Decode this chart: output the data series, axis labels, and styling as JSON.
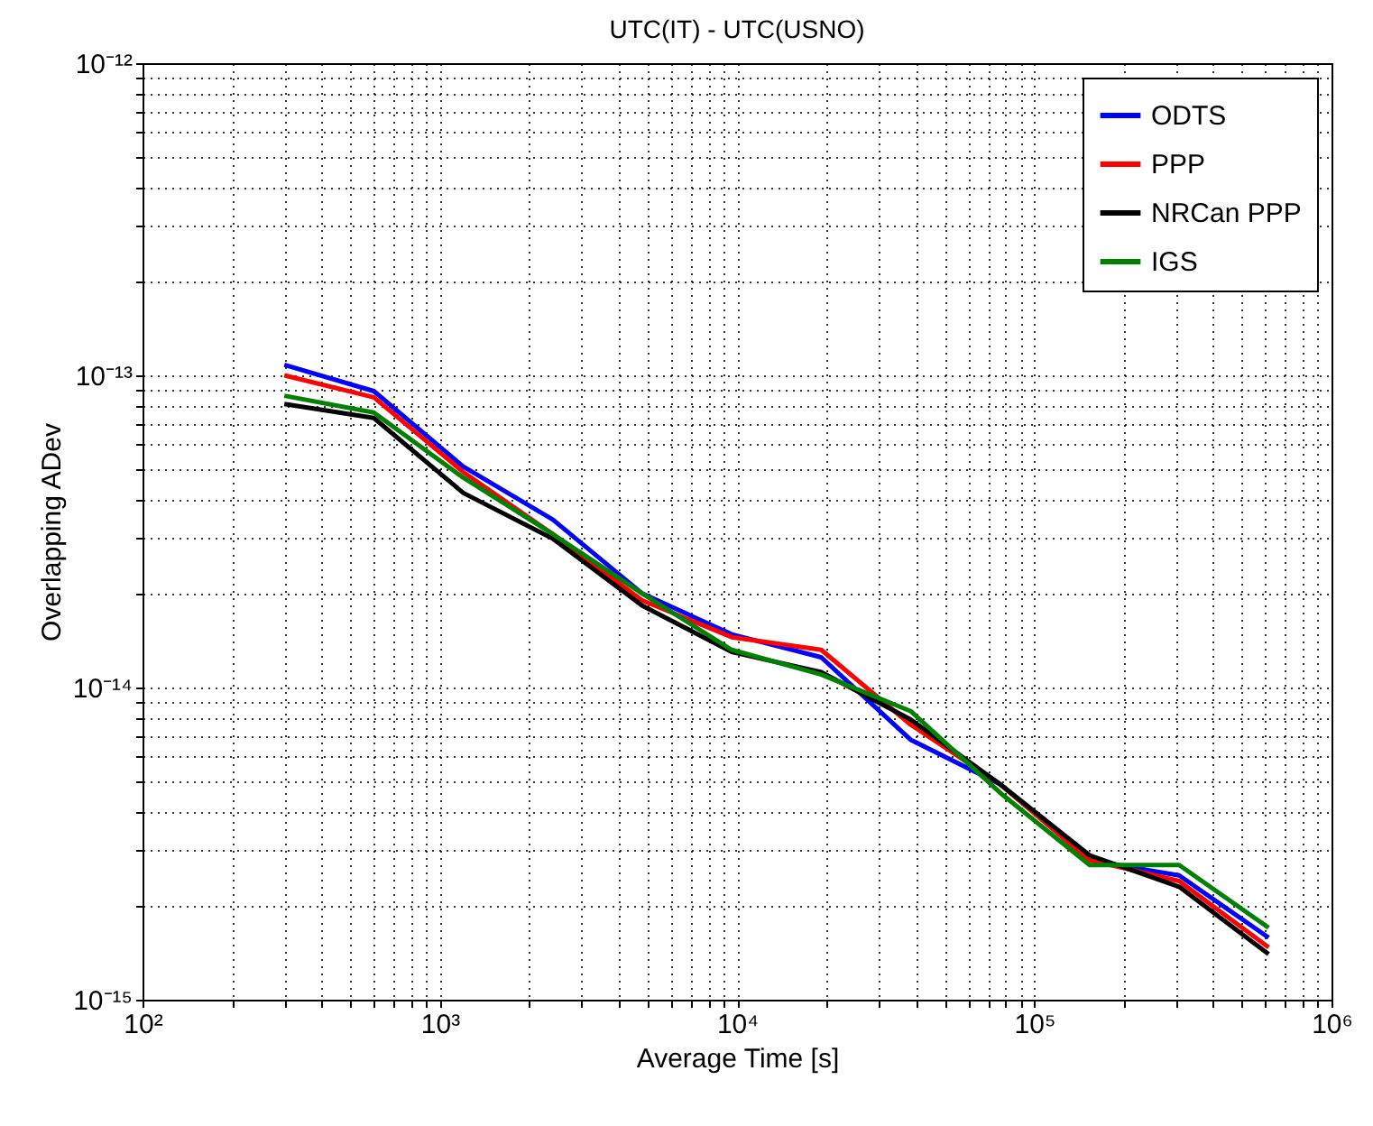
{
  "chart_data": {
    "type": "line",
    "title": "UTC(IT) - UTC(USNO)",
    "xlabel": "Average Time [s]",
    "ylabel": "Overlapping ADev",
    "x": [
      300,
      600,
      1200,
      2400,
      4800,
      9600,
      19200,
      38400,
      76800,
      153600,
      307200,
      614400
    ],
    "series": [
      {
        "name": "ODTS",
        "color": "#0000ff",
        "values": [
          1.08e-13,
          8.9e-14,
          5.1e-14,
          3.45e-14,
          2e-14,
          1.48e-14,
          1.25e-14,
          6.8e-15,
          4.9e-15,
          2.8e-15,
          2.5e-15,
          1.58e-15
        ]
      },
      {
        "name": "PPP",
        "color": "#ff0000",
        "values": [
          1e-13,
          8.5e-14,
          4.9e-14,
          3.1e-14,
          1.9e-14,
          1.45e-14,
          1.32e-14,
          7.6e-15,
          4.9e-15,
          2.8e-15,
          2.4e-15,
          1.47e-15
        ]
      },
      {
        "name": "NRCan PPP",
        "color": "#000000",
        "values": [
          8.1e-14,
          7.3e-14,
          4.2e-14,
          3e-14,
          1.83e-14,
          1.3e-14,
          1.12e-14,
          7.9e-15,
          4.9e-15,
          2.9e-15,
          2.3e-15,
          1.4e-15
        ]
      },
      {
        "name": "IGS",
        "color": "#008000",
        "values": [
          8.6e-14,
          7.6e-14,
          4.7e-14,
          3.1e-14,
          2e-14,
          1.32e-14,
          1.1e-14,
          8.4e-15,
          4.6e-15,
          2.7e-15,
          2.7e-15,
          1.7e-15
        ]
      }
    ],
    "log": "xy",
    "xlim": [
      100,
      1000000
    ],
    "ylim": [
      1e-15,
      1e-12
    ],
    "xticks": [
      {
        "value": 100,
        "label": "10²"
      },
      {
        "value": 200,
        "label": null
      },
      {
        "value": 300,
        "label": null
      },
      {
        "value": 400,
        "label": null
      },
      {
        "value": 500,
        "label": null
      },
      {
        "value": 600,
        "label": null
      },
      {
        "value": 700,
        "label": null
      },
      {
        "value": 800,
        "label": null
      },
      {
        "value": 900,
        "label": null
      },
      {
        "value": 1000,
        "label": "10³"
      },
      {
        "value": 2000,
        "label": null
      },
      {
        "value": 3000,
        "label": null
      },
      {
        "value": 4000,
        "label": null
      },
      {
        "value": 5000,
        "label": null
      },
      {
        "value": 6000,
        "label": null
      },
      {
        "value": 7000,
        "label": null
      },
      {
        "value": 8000,
        "label": null
      },
      {
        "value": 9000,
        "label": null
      },
      {
        "value": 10000,
        "label": "10⁴"
      },
      {
        "value": 20000,
        "label": null
      },
      {
        "value": 30000,
        "label": null
      },
      {
        "value": 40000,
        "label": null
      },
      {
        "value": 50000,
        "label": null
      },
      {
        "value": 60000,
        "label": null
      },
      {
        "value": 70000,
        "label": null
      },
      {
        "value": 80000,
        "label": null
      },
      {
        "value": 90000,
        "label": null
      },
      {
        "value": 100000,
        "label": "10⁵"
      },
      {
        "value": 200000,
        "label": null
      },
      {
        "value": 300000,
        "label": null
      },
      {
        "value": 400000,
        "label": null
      },
      {
        "value": 500000,
        "label": null
      },
      {
        "value": 600000,
        "label": null
      },
      {
        "value": 700000,
        "label": null
      },
      {
        "value": 800000,
        "label": null
      },
      {
        "value": 900000,
        "label": null
      },
      {
        "value": 1000000,
        "label": "10⁶"
      }
    ],
    "yticks": [
      {
        "value": 1e-15,
        "label": "10⁻¹⁵"
      },
      {
        "value": 2e-15,
        "label": null
      },
      {
        "value": 3e-15,
        "label": null
      },
      {
        "value": 4e-15,
        "label": null
      },
      {
        "value": 5e-15,
        "label": null
      },
      {
        "value": 6e-15,
        "label": null
      },
      {
        "value": 7e-15,
        "label": null
      },
      {
        "value": 8e-15,
        "label": null
      },
      {
        "value": 9e-15,
        "label": null
      },
      {
        "value": 1e-14,
        "label": "10⁻¹⁴"
      },
      {
        "value": 2e-14,
        "label": null
      },
      {
        "value": 3e-14,
        "label": null
      },
      {
        "value": 4e-14,
        "label": null
      },
      {
        "value": 5e-14,
        "label": null
      },
      {
        "value": 6e-14,
        "label": null
      },
      {
        "value": 7e-14,
        "label": null
      },
      {
        "value": 8e-14,
        "label": null
      },
      {
        "value": 9e-14,
        "label": null
      },
      {
        "value": 1e-13,
        "label": "10⁻¹³"
      },
      {
        "value": 2e-13,
        "label": null
      },
      {
        "value": 3e-13,
        "label": null
      },
      {
        "value": 4e-13,
        "label": null
      },
      {
        "value": 5e-13,
        "label": null
      },
      {
        "value": 6e-13,
        "label": null
      },
      {
        "value": 7e-13,
        "label": null
      },
      {
        "value": 8e-13,
        "label": null
      },
      {
        "value": 9e-13,
        "label": null
      },
      {
        "value": 1e-12,
        "label": "10⁻¹²"
      }
    ],
    "grid": true,
    "legend": "top right",
    "line_style": "solid",
    "marker": "none"
  }
}
